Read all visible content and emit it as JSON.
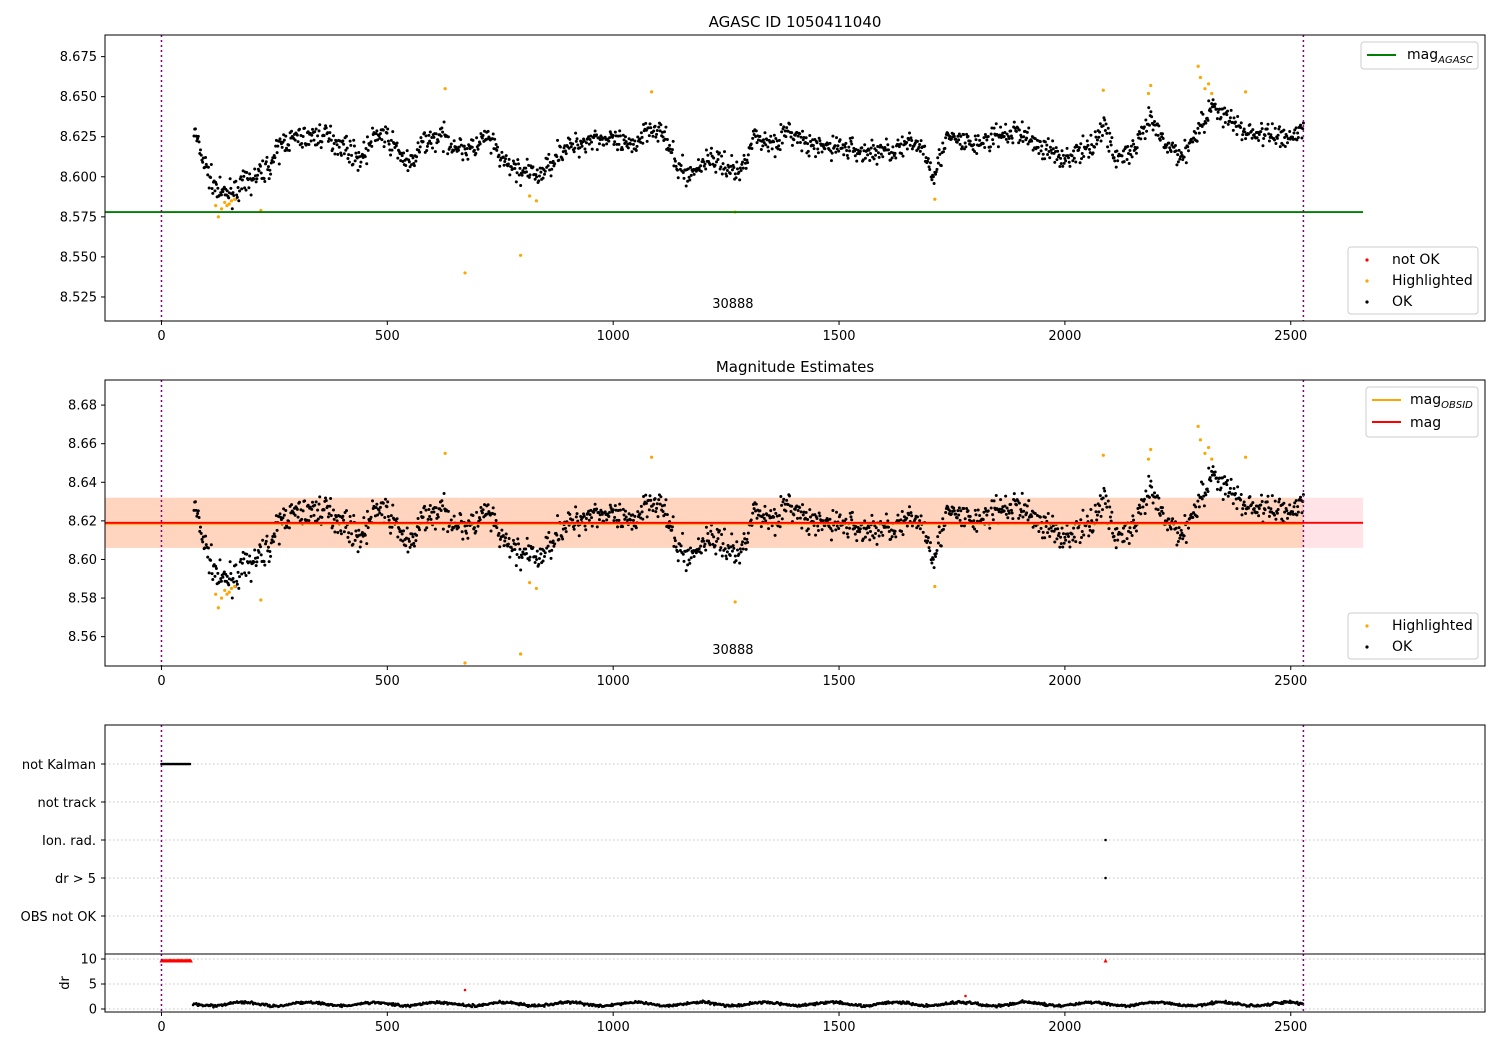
{
  "colors": {
    "ok": "#000000",
    "highlighted": "#ffa500",
    "not_ok": "#ff0000",
    "agasc_line": "#008000",
    "obsid_line": "#ffa500",
    "mag_line": "#ff0000",
    "obsid_band": "#ffa500",
    "mag_band": "#ff8090",
    "marker_line": "#800080"
  },
  "chart_data": [
    {
      "type": "scatter",
      "title": "AGASC ID 1050411040",
      "xlim": [
        -125,
        2930
      ],
      "ylim": [
        8.51,
        8.6885
      ],
      "xticks": [
        0,
        500,
        1000,
        1500,
        2000,
        2500
      ],
      "yticks": [
        8.525,
        8.55,
        8.575,
        8.6,
        8.625,
        8.65,
        8.675
      ],
      "ytick_labels": [
        "8.525",
        "8.550",
        "8.575",
        "8.600",
        "8.625",
        "8.650",
        "8.675"
      ],
      "vlines": [
        0,
        2528
      ],
      "annotation": {
        "text": "30888",
        "x": 1265,
        "y": 8.518
      },
      "hlines": [
        {
          "name": "mag",
          "subscript": "AGASC",
          "y": 8.578,
          "x0": -125,
          "x1": 2660
        }
      ],
      "legend_lines": [
        {
          "name": "mag",
          "subscript": "AGASC",
          "color_key": "agasc_line"
        }
      ],
      "legend_points": [
        {
          "name": "not OK",
          "color_key": "not_ok"
        },
        {
          "name": "Highlighted",
          "color_key": "highlighted"
        },
        {
          "name": "OK",
          "color_key": "ok"
        }
      ],
      "trend": [
        [
          70,
          8.631
        ],
        [
          90,
          8.612
        ],
        [
          110,
          8.598
        ],
        [
          130,
          8.589
        ],
        [
          160,
          8.591
        ],
        [
          200,
          8.598
        ],
        [
          240,
          8.607
        ],
        [
          270,
          8.622
        ],
        [
          300,
          8.624
        ],
        [
          330,
          8.625
        ],
        [
          360,
          8.626
        ],
        [
          400,
          8.62
        ],
        [
          440,
          8.611
        ],
        [
          480,
          8.628
        ],
        [
          520,
          8.618
        ],
        [
          550,
          8.606
        ],
        [
          580,
          8.622
        ],
        [
          620,
          8.625
        ],
        [
          660,
          8.618
        ],
        [
          690,
          8.617
        ],
        [
          720,
          8.625
        ],
        [
          760,
          8.608
        ],
        [
          800,
          8.603
        ],
        [
          840,
          8.601
        ],
        [
          880,
          8.616
        ],
        [
          920,
          8.62
        ],
        [
          960,
          8.625
        ],
        [
          1000,
          8.622
        ],
        [
          1040,
          8.618
        ],
        [
          1080,
          8.632
        ],
        [
          1110,
          8.627
        ],
        [
          1140,
          8.607
        ],
        [
          1170,
          8.601
        ],
        [
          1210,
          8.612
        ],
        [
          1250,
          8.607
        ],
        [
          1280,
          8.602
        ],
        [
          1310,
          8.625
        ],
        [
          1350,
          8.621
        ],
        [
          1390,
          8.628
        ],
        [
          1440,
          8.618
        ],
        [
          1500,
          8.619
        ],
        [
          1560,
          8.615
        ],
        [
          1620,
          8.617
        ],
        [
          1680,
          8.621
        ],
        [
          1710,
          8.602
        ],
        [
          1740,
          8.624
        ],
        [
          1800,
          8.62
        ],
        [
          1850,
          8.625
        ],
        [
          1900,
          8.628
        ],
        [
          1950,
          8.618
        ],
        [
          2000,
          8.612
        ],
        [
          2050,
          8.617
        ],
        [
          2090,
          8.632
        ],
        [
          2110,
          8.612
        ],
        [
          2150,
          8.615
        ],
        [
          2190,
          8.636
        ],
        [
          2220,
          8.62
        ],
        [
          2260,
          8.613
        ],
        [
          2300,
          8.632
        ],
        [
          2330,
          8.645
        ],
        [
          2360,
          8.636
        ],
        [
          2400,
          8.628
        ],
        [
          2450,
          8.626
        ],
        [
          2500,
          8.625
        ],
        [
          2528,
          8.63
        ]
      ],
      "highlighted_points": [
        [
          120,
          8.582
        ],
        [
          126,
          8.575
        ],
        [
          133,
          8.58
        ],
        [
          140,
          8.584
        ],
        [
          145,
          8.582
        ],
        [
          150,
          8.583
        ],
        [
          155,
          8.585
        ],
        [
          162,
          8.586
        ],
        [
          220,
          8.579
        ],
        [
          628,
          8.655
        ],
        [
          672,
          8.54
        ],
        [
          795,
          8.551
        ],
        [
          815,
          8.588
        ],
        [
          830,
          8.585
        ],
        [
          1085,
          8.653
        ],
        [
          1270,
          8.578
        ],
        [
          1712,
          8.586
        ],
        [
          2085,
          8.654
        ],
        [
          2190,
          8.657
        ],
        [
          2185,
          8.652
        ],
        [
          2295,
          8.669
        ],
        [
          2300,
          8.662
        ],
        [
          2310,
          8.655
        ],
        [
          2318,
          8.658
        ],
        [
          2325,
          8.652
        ],
        [
          2400,
          8.653
        ]
      ]
    },
    {
      "type": "scatter",
      "title": "Magnitude Estimates",
      "xlim": [
        -125,
        2930
      ],
      "ylim": [
        8.5448,
        8.693
      ],
      "xticks": [
        0,
        500,
        1000,
        1500,
        2000,
        2500
      ],
      "yticks": [
        8.56,
        8.58,
        8.6,
        8.62,
        8.64,
        8.66,
        8.68
      ],
      "ytick_labels": [
        "8.56",
        "8.58",
        "8.60",
        "8.62",
        "8.64",
        "8.66",
        "8.68"
      ],
      "vlines": [
        0,
        2528
      ],
      "annotation": {
        "text": "30888",
        "x": 1265,
        "y": 8.551
      },
      "bands": [
        {
          "y0": 8.606,
          "y1": 8.632,
          "x0": -125,
          "x1": 2528,
          "color_key": "obsid_band",
          "opacity": 0.2
        },
        {
          "y0": 8.606,
          "y1": 8.632,
          "x0": -125,
          "x1": 2660,
          "color_key": "mag_band",
          "opacity": 0.22
        }
      ],
      "hlines": [
        {
          "name": "mag",
          "subscript": "OBSID",
          "y": 8.6185,
          "x0": -125,
          "x1": 2528
        },
        {
          "name": "mag",
          "y": 8.619,
          "x0": -125,
          "x1": 2660
        }
      ],
      "legend_lines": [
        {
          "name": "mag",
          "subscript": "OBSID",
          "color_key": "obsid_line"
        },
        {
          "name": "mag",
          "color_key": "mag_line"
        }
      ],
      "legend_points": [
        {
          "name": "Highlighted",
          "color_key": "highlighted"
        },
        {
          "name": "OK",
          "color_key": "ok"
        }
      ]
    },
    {
      "type": "scatter",
      "xlim": [
        -125,
        2930
      ],
      "categories": [
        "not Kalman",
        "not track",
        "Ion. rad.",
        "dr > 5",
        "OBS not OK"
      ],
      "vlines": [
        0,
        2528
      ],
      "flag_points": [
        {
          "category": "not Kalman",
          "x_from": 0,
          "x_to": 65,
          "step": 3
        },
        {
          "category": "Ion. rad.",
          "x": [
            2090
          ]
        },
        {
          "category": "dr > 5",
          "x": [
            2090
          ]
        }
      ]
    },
    {
      "type": "scatter",
      "ylabel": "dr",
      "xlim": [
        -125,
        2930
      ],
      "ylim": [
        -0.6,
        11
      ],
      "xticks": [
        0,
        500,
        1000,
        1500,
        2000,
        2500
      ],
      "yticks": [
        0,
        5,
        10
      ],
      "ytick_labels": [
        "0",
        "5",
        "10"
      ],
      "vlines": [
        0,
        2528
      ],
      "clipped": {
        "y": 9.7,
        "x_from": 0,
        "x_to": 65,
        "step": 2.5,
        "extra_x": [
          2090
        ]
      },
      "outliers": [
        [
          672,
          3.8
        ],
        [
          1780,
          2.6
        ]
      ],
      "baseline": {
        "x_from": 70,
        "x_to": 2528,
        "mean": 1.0,
        "spread": 0.5
      }
    }
  ]
}
